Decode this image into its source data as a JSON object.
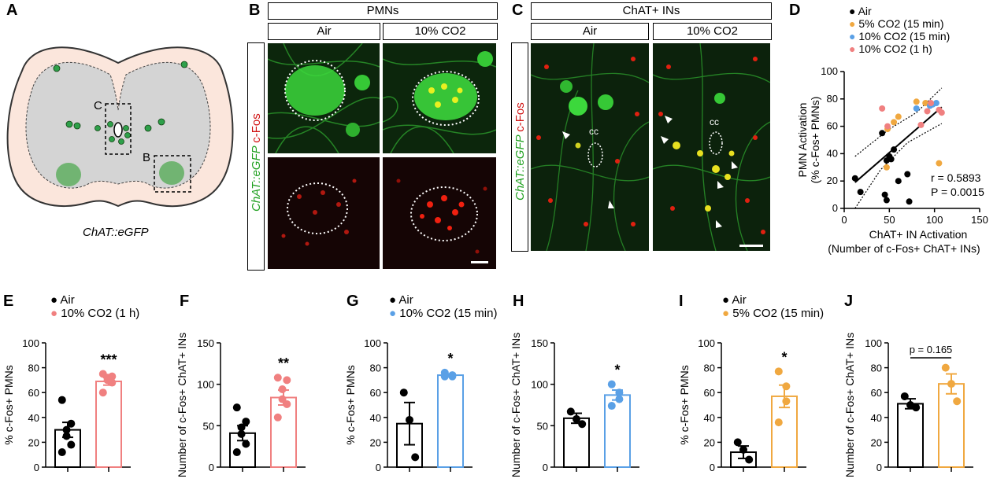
{
  "panels": {
    "A": {
      "letter": "A",
      "caption": "ChAT::eGFP",
      "label_c": "C",
      "label_b": "B"
    },
    "B": {
      "letter": "B",
      "title": "PMNs",
      "col1": "Air",
      "col2": "10% CO2",
      "stain_green": "ChAT::eGFP",
      "stain_red": "c-Fos"
    },
    "C": {
      "letter": "C",
      "title": "ChAT+ INs",
      "col1": "Air",
      "col2": "10% CO2",
      "stain_green": "ChAT::eGFP",
      "stain_red": "c-Fos",
      "cc": "cc"
    },
    "D": {
      "letter": "D"
    },
    "E": {
      "letter": "E"
    },
    "F": {
      "letter": "F"
    },
    "G": {
      "letter": "G"
    },
    "H": {
      "letter": "H"
    },
    "I": {
      "letter": "I"
    },
    "J": {
      "letter": "J"
    }
  },
  "colors": {
    "air": "#000000",
    "co2_1h": "#f08080",
    "co2_15": "#5aa0e6",
    "co2_5": "#f0a840",
    "green": "#2fd12f",
    "red": "#e02010"
  },
  "chart_data": [
    {
      "id": "D",
      "type": "scatter",
      "xlabel": "ChAT+ IN Activation",
      "xlabel2": "(Number of c-Fos+ ChAT+ INs)",
      "ylabel": "PMN Activation",
      "ylabel2": "(% c-Fos+ PMNs)",
      "xlim": [
        0,
        150
      ],
      "ylim": [
        0,
        100
      ],
      "xticks": [
        "0",
        "50",
        "100",
        "150"
      ],
      "yticks": [
        "0",
        "20",
        "40",
        "60",
        "80",
        "100"
      ],
      "legend": [
        "Air",
        "5% CO2 (15 min)",
        "10% CO2 (15 min)",
        "10% CO2 (1 h)"
      ],
      "stats": [
        "r = 0.5893",
        "P = 0.0015"
      ],
      "series": [
        {
          "name": "Air",
          "color": "#000000",
          "points": [
            [
              12,
              22
            ],
            [
              18,
              12
            ],
            [
              42,
              55
            ],
            [
              45,
              10
            ],
            [
              47,
              6
            ],
            [
              47,
              35
            ],
            [
              50,
              38
            ],
            [
              52,
              36
            ],
            [
              55,
              43
            ],
            [
              60,
              20
            ],
            [
              70,
              25
            ],
            [
              72,
              5
            ]
          ]
        },
        {
          "name": "5% CO2 (15 min)",
          "color": "#f0a840",
          "points": [
            [
              47,
              30
            ],
            [
              48,
              58
            ],
            [
              55,
              63
            ],
            [
              60,
              67
            ],
            [
              80,
              78
            ],
            [
              90,
              77
            ],
            [
              105,
              33
            ]
          ]
        },
        {
          "name": "10% CO2 (15 min)",
          "color": "#5aa0e6",
          "points": [
            [
              80,
              73
            ],
            [
              95,
              75
            ],
            [
              98,
              76
            ],
            [
              102,
              77
            ]
          ]
        },
        {
          "name": "10% CO2 (1 h)",
          "color": "#f08080",
          "points": [
            [
              42,
              73
            ],
            [
              48,
              60
            ],
            [
              85,
              61
            ],
            [
              92,
              71
            ],
            [
              96,
              77
            ],
            [
              105,
              72
            ],
            [
              108,
              70
            ]
          ]
        }
      ],
      "fit": [
        [
          12,
          19
        ],
        [
          108,
          74
        ]
      ]
    },
    {
      "id": "E",
      "type": "bar",
      "ylabel": "% c-Fos+ PMNs",
      "ylim": [
        0,
        100
      ],
      "yticks": [
        "0",
        "20",
        "40",
        "60",
        "80",
        "100"
      ],
      "legend": [
        "Air",
        "10% CO2 (1 h)"
      ],
      "significance": "***",
      "bars": [
        {
          "name": "Air",
          "color": "#000000",
          "mean": 30,
          "sem": 6,
          "points": [
            54,
            35,
            30,
            25,
            18,
            12
          ]
        },
        {
          "name": "10% CO2 (1 h)",
          "color": "#f08080",
          "mean": 69,
          "sem": 3,
          "points": [
            75,
            73,
            72,
            70,
            68,
            60
          ]
        }
      ]
    },
    {
      "id": "F",
      "type": "bar",
      "ylabel": "Number of c-Fos+ ChAT+ INs",
      "ylim": [
        0,
        150
      ],
      "yticks": [
        "0",
        "50",
        "100",
        "150"
      ],
      "significance": "**",
      "bars": [
        {
          "name": "Air",
          "color": "#000000",
          "mean": 41,
          "sem": 9,
          "points": [
            72,
            55,
            48,
            40,
            28,
            18
          ]
        },
        {
          "name": "10% CO2 (1 h)",
          "color": "#f08080",
          "mean": 84,
          "sem": 9,
          "points": [
            108,
            105,
            94,
            82,
            76,
            60
          ]
        }
      ]
    },
    {
      "id": "G",
      "type": "bar",
      "ylabel": "% c-Fos+ PMNs",
      "ylim": [
        0,
        100
      ],
      "yticks": [
        "0",
        "20",
        "40",
        "60",
        "80",
        "100"
      ],
      "legend": [
        "Air",
        "10% CO2 (15 min)"
      ],
      "significance": "*",
      "bars": [
        {
          "name": "Air",
          "color": "#000000",
          "mean": 35,
          "sem": 17,
          "points": [
            60,
            38,
            8
          ]
        },
        {
          "name": "10% CO2 (15 min)",
          "color": "#5aa0e6",
          "mean": 74,
          "sem": 1,
          "points": [
            76,
            74,
            73,
            73
          ]
        }
      ]
    },
    {
      "id": "H",
      "type": "bar",
      "ylabel": "Number of c-Fos+ ChAT+ INs",
      "ylim": [
        0,
        150
      ],
      "yticks": [
        "0",
        "50",
        "100",
        "150"
      ],
      "significance": "*",
      "bars": [
        {
          "name": "Air",
          "color": "#000000",
          "mean": 59,
          "sem": 6,
          "points": [
            67,
            58,
            52
          ]
        },
        {
          "name": "10% CO2 (15 min)",
          "color": "#5aa0e6",
          "mean": 87,
          "sem": 6,
          "points": [
            100,
            90,
            82,
            74
          ]
        }
      ]
    },
    {
      "id": "I",
      "type": "bar",
      "ylabel": "% c-Fos+ PMNs",
      "ylim": [
        0,
        100
      ],
      "yticks": [
        "0",
        "20",
        "40",
        "60",
        "80",
        "100"
      ],
      "legend": [
        "Air",
        "5% CO2 (15 min)"
      ],
      "significance": "*",
      "bars": [
        {
          "name": "Air",
          "color": "#000000",
          "mean": 12,
          "sem": 5,
          "points": [
            20,
            14,
            6
          ]
        },
        {
          "name": "5% CO2 (15 min)",
          "color": "#f0a840",
          "mean": 57,
          "sem": 9,
          "points": [
            77,
            65,
            53,
            36
          ]
        }
      ]
    },
    {
      "id": "J",
      "type": "bar",
      "ylabel": "Number of c-Fos+ ChAT+ INs",
      "ylim": [
        0,
        100
      ],
      "yticks": [
        "0",
        "20",
        "40",
        "60",
        "80",
        "100"
      ],
      "significance": "p = 0.165",
      "bars": [
        {
          "name": "Air",
          "color": "#000000",
          "mean": 51,
          "sem": 4,
          "points": [
            57,
            50,
            48
          ]
        },
        {
          "name": "5% CO2 (15 min)",
          "color": "#f0a840",
          "mean": 67,
          "sem": 8,
          "points": [
            80,
            67,
            53
          ]
        }
      ]
    }
  ]
}
